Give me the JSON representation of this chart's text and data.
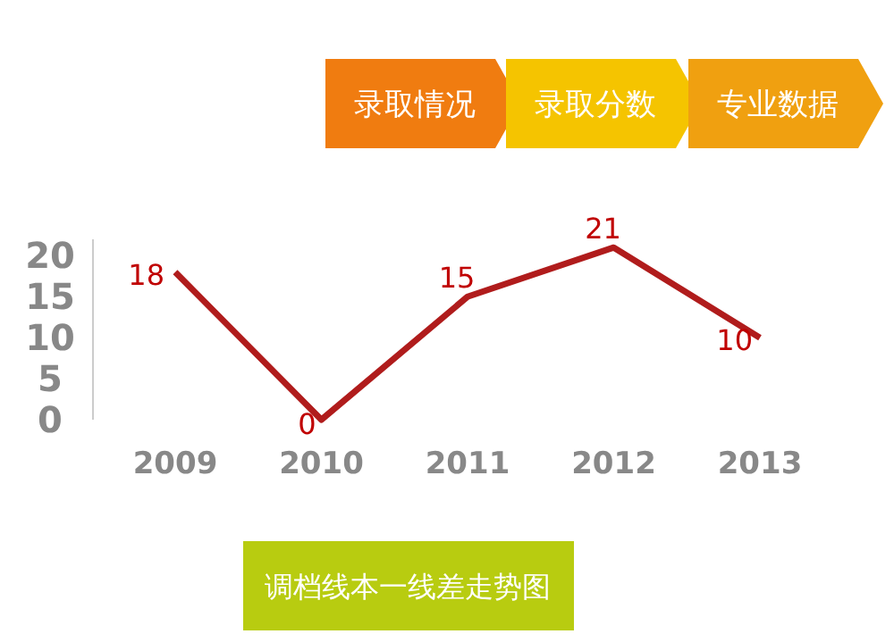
{
  "chart_data": {
    "type": "line",
    "title": "调档线本一线差走势图",
    "categories": [
      "2009",
      "2010",
      "2011",
      "2012",
      "2013"
    ],
    "series": [
      {
        "color": "#b01c1c",
        "values": [
          18,
          0,
          15,
          21,
          10
        ]
      }
    ],
    "ylim": [
      0,
      22
    ],
    "yticks": [
      0,
      5,
      10,
      15,
      20
    ],
    "data_labels": true,
    "grid": false,
    "marker": "none",
    "line_style": "solid",
    "annotations": [
      "录取情况",
      "录取分数",
      "专业数据"
    ]
  }
}
